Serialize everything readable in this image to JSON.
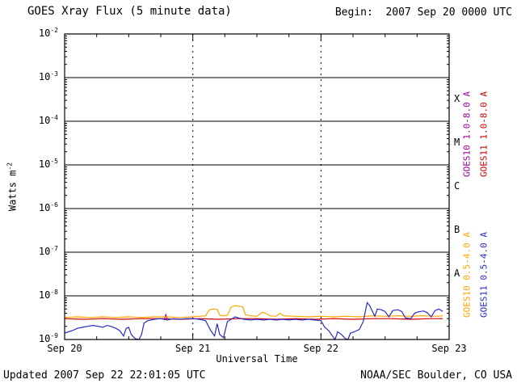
{
  "header": {
    "title": "GOES Xray Flux (5 minute data)",
    "begin_label": "Begin:  2007 Sep 20 0000 UTC"
  },
  "footer": {
    "updated_label": "Updated 2007 Sep 22 22:01:05 UTC",
    "credit_label": "NOAA/SEC Boulder, CO USA"
  },
  "colors": {
    "background": "#ffffff",
    "foreground": "#000000",
    "goes10_long": "#990099",
    "goes11_long": "#cc0000",
    "goes10_short": "#ffa500",
    "goes11_short": "#2929c8"
  },
  "chart_data": {
    "type": "line",
    "title": "GOES Xray Flux (5 minute data)",
    "xlabel": "Universal Time",
    "ylabel": "Watts m^-2",
    "ylabel_base": "Watts m",
    "ylabel_exp": "-2",
    "x_range_days": [
      0,
      3
    ],
    "x_ticks": [
      {
        "day": 0,
        "label": "Sep 20"
      },
      {
        "day": 1,
        "label": "Sep 21"
      },
      {
        "day": 2,
        "label": "Sep 22"
      },
      {
        "day": 3,
        "label": "Sep 23"
      }
    ],
    "x_minor_tick_step_days": 0.25,
    "y_log_range": [
      -9,
      -2
    ],
    "y_tick_exponents": [
      -2,
      -3,
      -4,
      -5,
      -6,
      -7,
      -8,
      -9
    ],
    "grid": {
      "h_solid_decades": [
        -3,
        -4,
        -5,
        -6,
        -7,
        -8
      ],
      "v_dashed_days": [
        1,
        2
      ]
    },
    "flare_classes": [
      {
        "label": "X",
        "log_center": -3.5
      },
      {
        "label": "M",
        "log_center": -4.5
      },
      {
        "label": "C",
        "log_center": -5.5
      },
      {
        "label": "B",
        "log_center": -6.5
      },
      {
        "label": "A",
        "log_center": -7.5
      }
    ],
    "series": [
      {
        "name": "GOES10 1.0-8.0 A",
        "color": "#990099",
        "legend": {
          "col": 0,
          "group": "top"
        },
        "points": [
          [
            0.78,
            3e-09
          ],
          [
            0.79,
            3.7e-09
          ],
          [
            0.8,
            3e-09
          ]
        ]
      },
      {
        "name": "GOES11 1.0-8.0 A",
        "color": "#cc0000",
        "legend": {
          "col": 1,
          "group": "top"
        },
        "points": [
          [
            0.0,
            3e-09
          ],
          [
            0.15,
            2.9e-09
          ],
          [
            0.3,
            3e-09
          ],
          [
            0.45,
            2.9e-09
          ],
          [
            0.6,
            3e-09
          ],
          [
            0.75,
            3e-09
          ],
          [
            0.9,
            2.9e-09
          ],
          [
            1.05,
            3e-09
          ],
          [
            1.2,
            2.9e-09
          ],
          [
            1.35,
            3e-09
          ],
          [
            1.5,
            3e-09
          ],
          [
            1.65,
            2.9e-09
          ],
          [
            1.8,
            3e-09
          ],
          [
            1.95,
            2.9e-09
          ],
          [
            2.1,
            3e-09
          ],
          [
            2.25,
            2.9e-09
          ],
          [
            2.4,
            3e-09
          ],
          [
            2.55,
            3e-09
          ],
          [
            2.7,
            2.9e-09
          ],
          [
            2.85,
            3e-09
          ],
          [
            2.95,
            3e-09
          ]
        ]
      },
      {
        "name": "GOES10 0.5-4.0 A",
        "color": "#ffa500",
        "legend": {
          "col": 0,
          "group": "bottom"
        },
        "points": [
          [
            0.0,
            3.2e-09
          ],
          [
            0.1,
            3.3e-09
          ],
          [
            0.2,
            3.2e-09
          ],
          [
            0.3,
            3.3e-09
          ],
          [
            0.4,
            3.2e-09
          ],
          [
            0.5,
            3.3e-09
          ],
          [
            0.6,
            3.2e-09
          ],
          [
            0.7,
            3.3e-09
          ],
          [
            0.8,
            3.3e-09
          ],
          [
            0.9,
            3.2e-09
          ],
          [
            1.0,
            3.3e-09
          ],
          [
            1.05,
            3.4e-09
          ],
          [
            1.1,
            3.5e-09
          ],
          [
            1.13,
            4.8e-09
          ],
          [
            1.16,
            5e-09
          ],
          [
            1.19,
            4.9e-09
          ],
          [
            1.21,
            3.6e-09
          ],
          [
            1.24,
            3.5e-09
          ],
          [
            1.27,
            3.6e-09
          ],
          [
            1.3,
            5.6e-09
          ],
          [
            1.33,
            6e-09
          ],
          [
            1.36,
            5.8e-09
          ],
          [
            1.39,
            5.6e-09
          ],
          [
            1.41,
            3.7e-09
          ],
          [
            1.45,
            3.5e-09
          ],
          [
            1.5,
            3.4e-09
          ],
          [
            1.54,
            4.2e-09
          ],
          [
            1.57,
            4e-09
          ],
          [
            1.6,
            3.5e-09
          ],
          [
            1.65,
            3.4e-09
          ],
          [
            1.68,
            4e-09
          ],
          [
            1.71,
            3.5e-09
          ],
          [
            1.8,
            3.4e-09
          ],
          [
            1.9,
            3.3e-09
          ],
          [
            2.0,
            3.4e-09
          ],
          [
            2.1,
            3.3e-09
          ],
          [
            2.2,
            3.4e-09
          ],
          [
            2.3,
            3.3e-09
          ],
          [
            2.4,
            3.5e-09
          ],
          [
            2.5,
            3.4e-09
          ],
          [
            2.6,
            3.5e-09
          ],
          [
            2.7,
            3.4e-09
          ],
          [
            2.8,
            3.5e-09
          ],
          [
            2.9,
            3.4e-09
          ],
          [
            2.95,
            3.5e-09
          ]
        ]
      },
      {
        "name": "GOES11 0.5-4.0 A",
        "color": "#2929c8",
        "legend": {
          "col": 1,
          "group": "bottom"
        },
        "points": [
          [
            0.0,
            1.4e-09
          ],
          [
            0.03,
            1.5e-09
          ],
          [
            0.06,
            1.6e-09
          ],
          [
            0.1,
            1.8e-09
          ],
          [
            0.14,
            1.9e-09
          ],
          [
            0.18,
            2e-09
          ],
          [
            0.22,
            2.1e-09
          ],
          [
            0.26,
            2e-09
          ],
          [
            0.3,
            1.9e-09
          ],
          [
            0.33,
            2.1e-09
          ],
          [
            0.36,
            2e-09
          ],
          [
            0.4,
            1.8e-09
          ],
          [
            0.43,
            1.6e-09
          ],
          [
            0.46,
            1.2e-09
          ],
          [
            0.48,
            1.8e-09
          ],
          [
            0.5,
            1.9e-09
          ],
          [
            0.52,
            1.3e-09
          ],
          [
            0.55,
            1.05e-09
          ],
          [
            0.58,
            1e-09
          ],
          [
            0.6,
            1.3e-09
          ],
          [
            0.62,
            2.4e-09
          ],
          [
            0.65,
            2.7e-09
          ],
          [
            0.7,
            2.9e-09
          ],
          [
            0.75,
            3e-09
          ],
          [
            0.8,
            2.8e-09
          ],
          [
            0.85,
            3e-09
          ],
          [
            0.9,
            2.9e-09
          ],
          [
            0.95,
            3e-09
          ],
          [
            1.0,
            3e-09
          ],
          [
            1.05,
            2.9e-09
          ],
          [
            1.1,
            2.7e-09
          ],
          [
            1.14,
            1.6e-09
          ],
          [
            1.17,
            1.2e-09
          ],
          [
            1.19,
            2.3e-09
          ],
          [
            1.21,
            1.3e-09
          ],
          [
            1.24,
            1.1e-09
          ],
          [
            1.27,
            2.6e-09
          ],
          [
            1.3,
            2.9e-09
          ],
          [
            1.33,
            3.3e-09
          ],
          [
            1.36,
            3.1e-09
          ],
          [
            1.4,
            2.9e-09
          ],
          [
            1.45,
            2.8e-09
          ],
          [
            1.5,
            2.9e-09
          ],
          [
            1.55,
            2.8e-09
          ],
          [
            1.6,
            2.9e-09
          ],
          [
            1.65,
            2.8e-09
          ],
          [
            1.7,
            2.9e-09
          ],
          [
            1.75,
            2.8e-09
          ],
          [
            1.8,
            2.9e-09
          ],
          [
            1.85,
            2.8e-09
          ],
          [
            1.9,
            2.9e-09
          ],
          [
            1.95,
            2.8e-09
          ],
          [
            2.0,
            2.7e-09
          ],
          [
            2.03,
            1.9e-09
          ],
          [
            2.06,
            1.6e-09
          ],
          [
            2.09,
            1.2e-09
          ],
          [
            2.11,
            1e-09
          ],
          [
            2.13,
            1.5e-09
          ],
          [
            2.16,
            1.3e-09
          ],
          [
            2.19,
            1.05e-09
          ],
          [
            2.21,
            1e-09
          ],
          [
            2.23,
            1.4e-09
          ],
          [
            2.26,
            1.5e-09
          ],
          [
            2.3,
            1.7e-09
          ],
          [
            2.33,
            2.6e-09
          ],
          [
            2.36,
            7e-09
          ],
          [
            2.38,
            6e-09
          ],
          [
            2.4,
            4.5e-09
          ],
          [
            2.42,
            3.4e-09
          ],
          [
            2.44,
            5e-09
          ],
          [
            2.47,
            4.8e-09
          ],
          [
            2.5,
            4.4e-09
          ],
          [
            2.53,
            3.3e-09
          ],
          [
            2.56,
            4.6e-09
          ],
          [
            2.6,
            4.8e-09
          ],
          [
            2.63,
            4.4e-09
          ],
          [
            2.66,
            3.1e-09
          ],
          [
            2.7,
            3e-09
          ],
          [
            2.73,
            4e-09
          ],
          [
            2.76,
            4.3e-09
          ],
          [
            2.8,
            4.5e-09
          ],
          [
            2.83,
            4.1e-09
          ],
          [
            2.86,
            3.3e-09
          ],
          [
            2.89,
            4.6e-09
          ],
          [
            2.92,
            5e-09
          ],
          [
            2.95,
            4.4e-09
          ]
        ]
      }
    ]
  }
}
